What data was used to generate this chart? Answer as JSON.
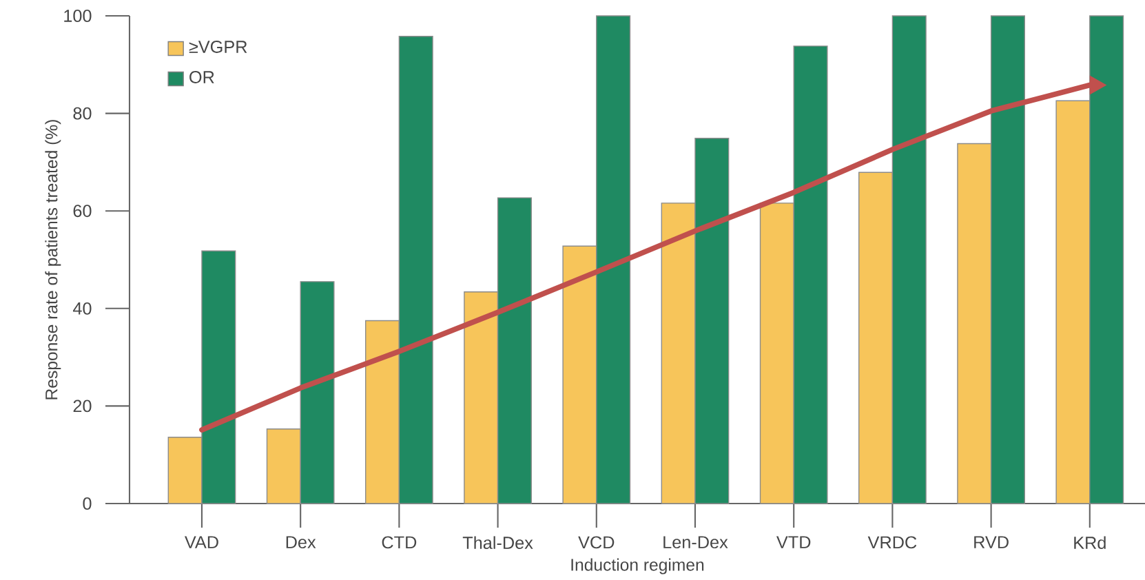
{
  "chart_data": {
    "type": "bar",
    "xlabel": "Induction regimen",
    "ylabel": "Response rate of patients treated (%)",
    "categories": [
      "VAD",
      "Dex",
      "CTD",
      "Thal-Dex",
      "VCD",
      "Len-Dex",
      "VTD",
      "VRDC",
      "RVD",
      "KRd"
    ],
    "series": [
      {
        "name": "≥VGPR",
        "color": "#f7c55a",
        "values": [
          13.6,
          15.3,
          37.5,
          43.4,
          52.8,
          61.6,
          61.6,
          67.9,
          73.8,
          82.6
        ]
      },
      {
        "name": "OR",
        "color": "#1f8a62",
        "values": [
          51.8,
          45.5,
          95.8,
          62.7,
          100,
          74.9,
          93.8,
          100,
          100,
          100
        ]
      },
      {
        "type": "line",
        "color": "#c0504d",
        "values": [
          15.1,
          23.7,
          31.2,
          39.2,
          47.5,
          55.9,
          63.8,
          72.6,
          80.5,
          85.8
        ]
      }
    ],
    "ylim": [
      0,
      100
    ],
    "yticks": [
      0,
      20,
      40,
      60,
      80,
      100
    ],
    "grid": false,
    "legend": "top left"
  }
}
